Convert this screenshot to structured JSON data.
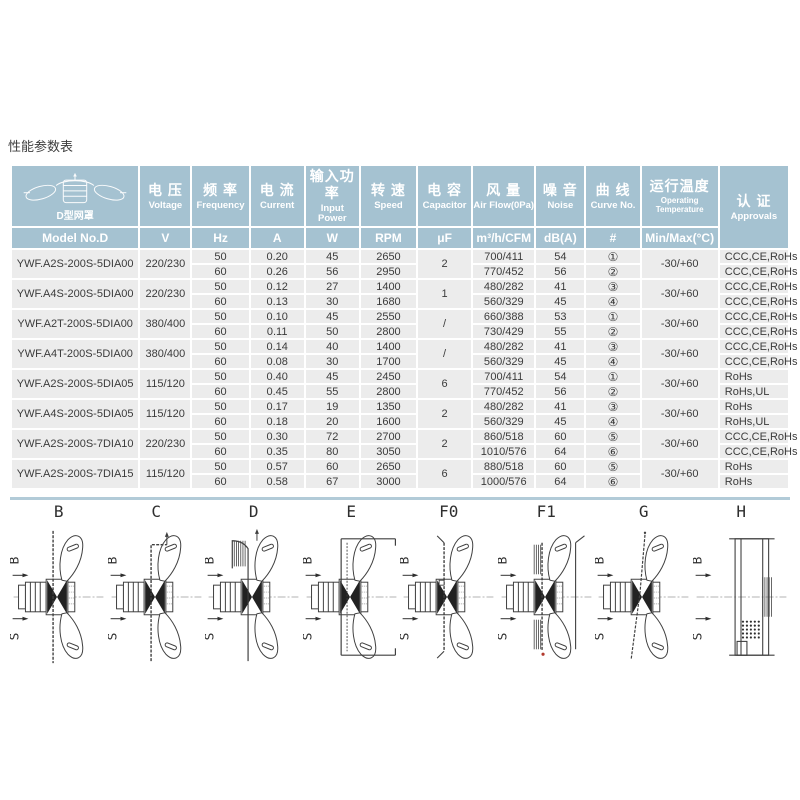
{
  "title": "性能参数表",
  "colors": {
    "header_blue": "#a5c2d1",
    "body_gray": "#ececec",
    "text_dark": "#3b3b3b"
  },
  "corner": {
    "caption": "D型网罩",
    "model_label": "Model No.D"
  },
  "columns": [
    {
      "zh": "电 压",
      "en": "Voltage",
      "unit": "V"
    },
    {
      "zh": "频 率",
      "en": "Frequency",
      "unit": "Hz"
    },
    {
      "zh": "电 流",
      "en": "Current",
      "unit": "A"
    },
    {
      "zh": "输入功率",
      "en": "Input Power",
      "unit": "W"
    },
    {
      "zh": "转 速",
      "en": "Speed",
      "unit": "RPM"
    },
    {
      "zh": "电 容",
      "en": "Capacitor",
      "unit": "μF"
    },
    {
      "zh": "风 量",
      "en": "Air Flow(0Pa)",
      "unit": "m³/h/CFM"
    },
    {
      "zh": "噪 音",
      "en": "Noise",
      "unit": "dB(A)"
    },
    {
      "zh": "曲 线",
      "en": "Curve No.",
      "unit": "#"
    },
    {
      "zh": "运行温度",
      "en": "Operating Temperature",
      "unit": "Min/Max(°C)"
    },
    {
      "zh": "认 证",
      "en": "Approvals",
      "unit": ""
    }
  ],
  "rows": [
    {
      "model": "YWF.A2S-200S-5DIA00",
      "voltage": "220/230",
      "capacitor": "2",
      "temp": "-30/+60",
      "sub": [
        {
          "hz": "50",
          "a": "0.20",
          "w": "45",
          "rpm": "2650",
          "airflow": "700/411",
          "noise": "54",
          "curve": "①",
          "approvals": "CCC,CE,RoHs"
        },
        {
          "hz": "60",
          "a": "0.26",
          "w": "56",
          "rpm": "2950",
          "airflow": "770/452",
          "noise": "56",
          "curve": "②",
          "approvals": "CCC,CE,RoHs"
        }
      ]
    },
    {
      "model": "YWF.A4S-200S-5DIA00",
      "voltage": "220/230",
      "capacitor": "1",
      "temp": "-30/+60",
      "sub": [
        {
          "hz": "50",
          "a": "0.12",
          "w": "27",
          "rpm": "1400",
          "airflow": "480/282",
          "noise": "41",
          "curve": "③",
          "approvals": "CCC,CE,RoHs"
        },
        {
          "hz": "60",
          "a": "0.13",
          "w": "30",
          "rpm": "1680",
          "airflow": "560/329",
          "noise": "45",
          "curve": "④",
          "approvals": "CCC,CE,RoHs"
        }
      ]
    },
    {
      "model": "YWF.A2T-200S-5DIA00",
      "voltage": "380/400",
      "capacitor": "/",
      "temp": "-30/+60",
      "sub": [
        {
          "hz": "50",
          "a": "0.10",
          "w": "45",
          "rpm": "2550",
          "airflow": "660/388",
          "noise": "53",
          "curve": "①",
          "approvals": "CCC,CE,RoHs"
        },
        {
          "hz": "60",
          "a": "0.11",
          "w": "50",
          "rpm": "2800",
          "airflow": "730/429",
          "noise": "55",
          "curve": "②",
          "approvals": "CCC,CE,RoHs"
        }
      ]
    },
    {
      "model": "YWF.A4T-200S-5DIA00",
      "voltage": "380/400",
      "capacitor": "/",
      "temp": "-30/+60",
      "sub": [
        {
          "hz": "50",
          "a": "0.14",
          "w": "40",
          "rpm": "1400",
          "airflow": "480/282",
          "noise": "41",
          "curve": "③",
          "approvals": "CCC,CE,RoHs"
        },
        {
          "hz": "60",
          "a": "0.08",
          "w": "30",
          "rpm": "1700",
          "airflow": "560/329",
          "noise": "45",
          "curve": "④",
          "approvals": "CCC,CE,RoHs"
        }
      ]
    },
    {
      "model": "YWF.A2S-200S-5DIA05",
      "voltage": "115/120",
      "capacitor": "6",
      "temp": "-30/+60",
      "sub": [
        {
          "hz": "50",
          "a": "0.40",
          "w": "45",
          "rpm": "2450",
          "airflow": "700/411",
          "noise": "54",
          "curve": "①",
          "approvals": "RoHs"
        },
        {
          "hz": "60",
          "a": "0.45",
          "w": "55",
          "rpm": "2800",
          "airflow": "770/452",
          "noise": "56",
          "curve": "②",
          "approvals": "RoHs,UL"
        }
      ]
    },
    {
      "model": "YWF.A4S-200S-5DIA05",
      "voltage": "115/120",
      "capacitor": "2",
      "temp": "-30/+60",
      "sub": [
        {
          "hz": "50",
          "a": "0.17",
          "w": "19",
          "rpm": "1350",
          "airflow": "480/282",
          "noise": "41",
          "curve": "③",
          "approvals": "RoHs"
        },
        {
          "hz": "60",
          "a": "0.18",
          "w": "20",
          "rpm": "1600",
          "airflow": "560/329",
          "noise": "45",
          "curve": "④",
          "approvals": "RoHs,UL"
        }
      ]
    },
    {
      "model": "YWF.A2S-200S-7DIA10",
      "voltage": "220/230",
      "capacitor": "2",
      "temp": "-30/+60",
      "sub": [
        {
          "hz": "50",
          "a": "0.30",
          "w": "72",
          "rpm": "2700",
          "airflow": "860/518",
          "noise": "60",
          "curve": "⑤",
          "approvals": "CCC,CE,RoHs"
        },
        {
          "hz": "60",
          "a": "0.35",
          "w": "80",
          "rpm": "3050",
          "airflow": "1010/576",
          "noise": "64",
          "curve": "⑥",
          "approvals": "CCC,CE,RoHs"
        }
      ]
    },
    {
      "model": "YWF.A2S-200S-7DIA15",
      "voltage": "115/120",
      "capacitor": "6",
      "temp": "-30/+60",
      "sub": [
        {
          "hz": "50",
          "a": "0.57",
          "w": "60",
          "rpm": "2650",
          "airflow": "880/518",
          "noise": "60",
          "curve": "⑤",
          "approvals": "RoHs"
        },
        {
          "hz": "60",
          "a": "0.58",
          "w": "67",
          "rpm": "3000",
          "airflow": "1000/576",
          "noise": "64",
          "curve": "⑥",
          "approvals": "RoHs"
        }
      ]
    }
  ],
  "annotations": {
    "b": "B",
    "s": "S"
  },
  "diagrams": [
    {
      "id": "B",
      "label": "B"
    },
    {
      "id": "C",
      "label": "C"
    },
    {
      "id": "D",
      "label": "D"
    },
    {
      "id": "E",
      "label": "E"
    },
    {
      "id": "F0",
      "label": "F0"
    },
    {
      "id": "F1",
      "label": "F1"
    },
    {
      "id": "G",
      "label": "G"
    },
    {
      "id": "H",
      "label": "H"
    }
  ]
}
